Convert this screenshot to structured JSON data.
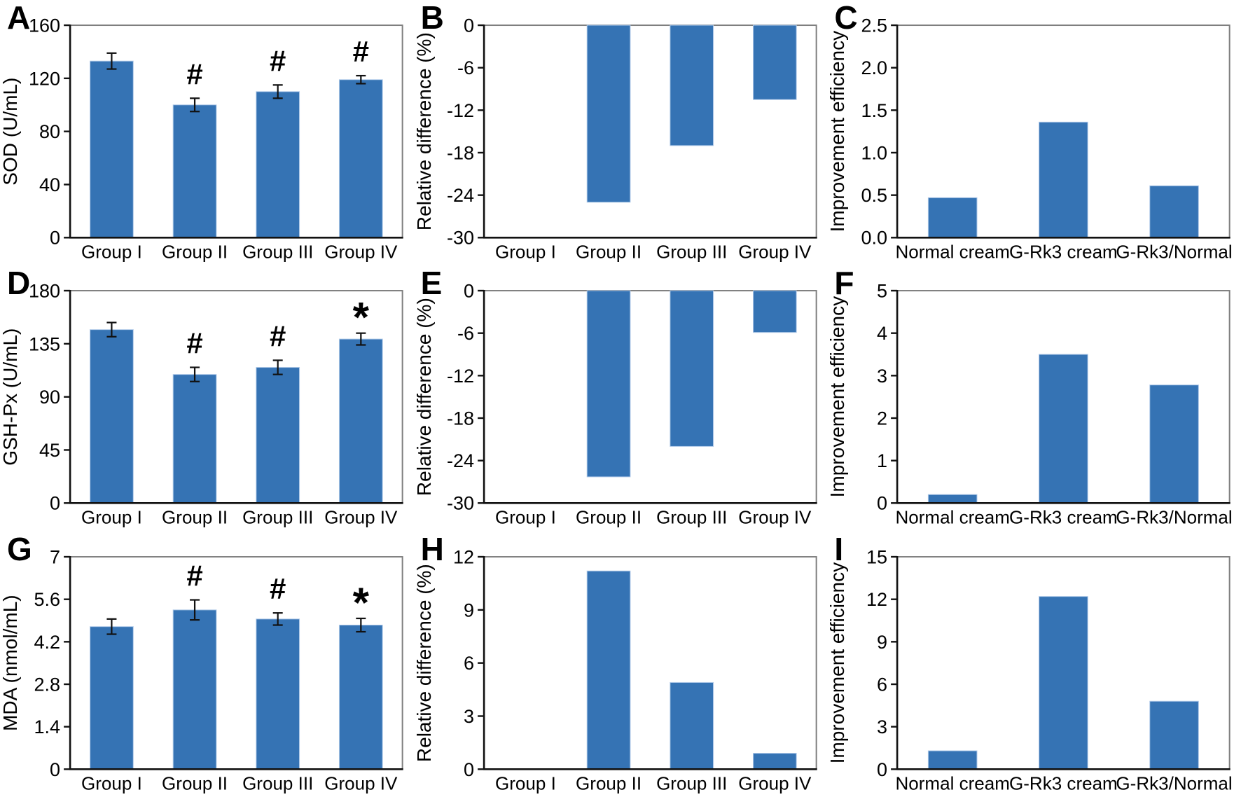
{
  "figure": {
    "bar_color": "#3573B4",
    "bar_edge_color": "#AFC9E8",
    "axis_color": "#111111",
    "box_color": "#7F7F7F",
    "text_color": "#000000",
    "grid": "off",
    "legend": "none"
  },
  "chart_data": [
    {
      "panel": "A",
      "type": "bar",
      "ylabel": "SOD (U/mL)",
      "xlabel": "",
      "ylim": [
        0,
        160
      ],
      "yticks": [
        {
          "v": 0,
          "t": "0"
        },
        {
          "v": 40,
          "t": "40"
        },
        {
          "v": 80,
          "t": "80"
        },
        {
          "v": 120,
          "t": "120"
        },
        {
          "v": 160,
          "t": "160"
        }
      ],
      "categories": [
        "Group I",
        "Group II",
        "Group III",
        "Group IV"
      ],
      "values": [
        133,
        100,
        110,
        119
      ],
      "errors": [
        6,
        5,
        5,
        3
      ],
      "annotations": [
        "",
        "#",
        "#",
        "#"
      ]
    },
    {
      "panel": "B",
      "type": "bar",
      "ylabel": "Relative difference (%)",
      "xlabel": "",
      "ylim": [
        -30,
        0
      ],
      "yticks": [
        {
          "v": 0,
          "t": "0"
        },
        {
          "v": -6,
          "t": "-6"
        },
        {
          "v": -12,
          "t": "-12"
        },
        {
          "v": -18,
          "t": "-18"
        },
        {
          "v": -24,
          "t": "-24"
        },
        {
          "v": -30,
          "t": "-30"
        }
      ],
      "categories": [
        "Group I",
        "Group II",
        "Group III",
        "Group IV"
      ],
      "values": [
        0,
        -25,
        -17,
        -10.5
      ],
      "errors": null,
      "annotations": null
    },
    {
      "panel": "C",
      "type": "bar",
      "ylabel": "Improvement efficiency",
      "xlabel": "",
      "ylim": [
        0,
        2.5
      ],
      "yticks": [
        {
          "v": 0,
          "t": "0.0"
        },
        {
          "v": 0.5,
          "t": "0.5"
        },
        {
          "v": 1,
          "t": "1.0"
        },
        {
          "v": 1.5,
          "t": "1.5"
        },
        {
          "v": 2,
          "t": "2.0"
        },
        {
          "v": 2.5,
          "t": "2.5"
        }
      ],
      "categories": [
        "Normal cream",
        "G-Rk3 cream",
        "G-Rk3/Normal"
      ],
      "values": [
        0.47,
        1.36,
        0.61
      ],
      "errors": null,
      "annotations": null
    },
    {
      "panel": "D",
      "type": "bar",
      "ylabel": "GSH-Px (U/mL)",
      "xlabel": "",
      "ylim": [
        0,
        180
      ],
      "yticks": [
        {
          "v": 0,
          "t": "0"
        },
        {
          "v": 45,
          "t": "45"
        },
        {
          "v": 90,
          "t": "90"
        },
        {
          "v": 135,
          "t": "135"
        },
        {
          "v": 180,
          "t": "180"
        }
      ],
      "categories": [
        "Group I",
        "Group II",
        "Group III",
        "Group IV"
      ],
      "values": [
        147,
        109,
        115,
        139
      ],
      "errors": [
        6,
        6,
        6,
        5
      ],
      "annotations": [
        "",
        "#",
        "#",
        "*"
      ]
    },
    {
      "panel": "E",
      "type": "bar",
      "ylabel": "Relative difference (%)",
      "xlabel": "",
      "ylim": [
        -30,
        0
      ],
      "yticks": [
        {
          "v": 0,
          "t": "0"
        },
        {
          "v": -6,
          "t": "-6"
        },
        {
          "v": -12,
          "t": "-12"
        },
        {
          "v": -18,
          "t": "-18"
        },
        {
          "v": -24,
          "t": "-24"
        },
        {
          "v": -30,
          "t": "-30"
        }
      ],
      "categories": [
        "Group I",
        "Group II",
        "Group III",
        "Group IV"
      ],
      "values": [
        0,
        -26.3,
        -22,
        -5.9
      ],
      "errors": null,
      "annotations": null
    },
    {
      "panel": "F",
      "type": "bar",
      "ylabel": "Improvement efficiency",
      "xlabel": "",
      "ylim": [
        0,
        5
      ],
      "yticks": [
        {
          "v": 0,
          "t": "0"
        },
        {
          "v": 1,
          "t": "1"
        },
        {
          "v": 2,
          "t": "2"
        },
        {
          "v": 3,
          "t": "3"
        },
        {
          "v": 4,
          "t": "4"
        },
        {
          "v": 5,
          "t": "5"
        }
      ],
      "categories": [
        "Normal cream",
        "G-Rk3 cream",
        "G-Rk3/Normal"
      ],
      "values": [
        0.2,
        3.5,
        2.78
      ],
      "errors": null,
      "annotations": null
    },
    {
      "panel": "G",
      "type": "bar",
      "ylabel": "MDA (nmol/mL)",
      "xlabel": "",
      "ylim": [
        0,
        7
      ],
      "yticks": [
        {
          "v": 0,
          "t": "0"
        },
        {
          "v": 1.4,
          "t": "1.4"
        },
        {
          "v": 2.8,
          "t": "2.8"
        },
        {
          "v": 4.2,
          "t": "4.2"
        },
        {
          "v": 5.6,
          "t": "5.6"
        },
        {
          "v": 7,
          "t": "7"
        }
      ],
      "categories": [
        "Group I",
        "Group II",
        "Group III",
        "Group IV"
      ],
      "values": [
        4.7,
        5.25,
        4.95,
        4.75
      ],
      "errors": [
        0.25,
        0.33,
        0.2,
        0.22
      ],
      "annotations": [
        "",
        "#",
        "#",
        "*"
      ]
    },
    {
      "panel": "H",
      "type": "bar",
      "ylabel": "Relative difference (%)",
      "xlabel": "",
      "ylim": [
        0,
        12
      ],
      "yticks": [
        {
          "v": 0,
          "t": "0"
        },
        {
          "v": 3,
          "t": "3"
        },
        {
          "v": 6,
          "t": "6"
        },
        {
          "v": 9,
          "t": "9"
        },
        {
          "v": 12,
          "t": "12"
        }
      ],
      "categories": [
        "Group I",
        "Group II",
        "Group III",
        "Group IV"
      ],
      "values": [
        0,
        11.2,
        4.9,
        0.9
      ],
      "errors": null,
      "annotations": null
    },
    {
      "panel": "I",
      "type": "bar",
      "ylabel": "Improvement efficiency",
      "xlabel": "",
      "ylim": [
        0,
        15
      ],
      "yticks": [
        {
          "v": 0,
          "t": "0"
        },
        {
          "v": 3,
          "t": "3"
        },
        {
          "v": 6,
          "t": "6"
        },
        {
          "v": 9,
          "t": "9"
        },
        {
          "v": 12,
          "t": "12"
        },
        {
          "v": 15,
          "t": "15"
        }
      ],
      "categories": [
        "Normal cream",
        "G-Rk3 cream",
        "G-Rk3/Normal"
      ],
      "values": [
        1.3,
        12.2,
        4.8
      ],
      "errors": null,
      "annotations": null
    }
  ]
}
